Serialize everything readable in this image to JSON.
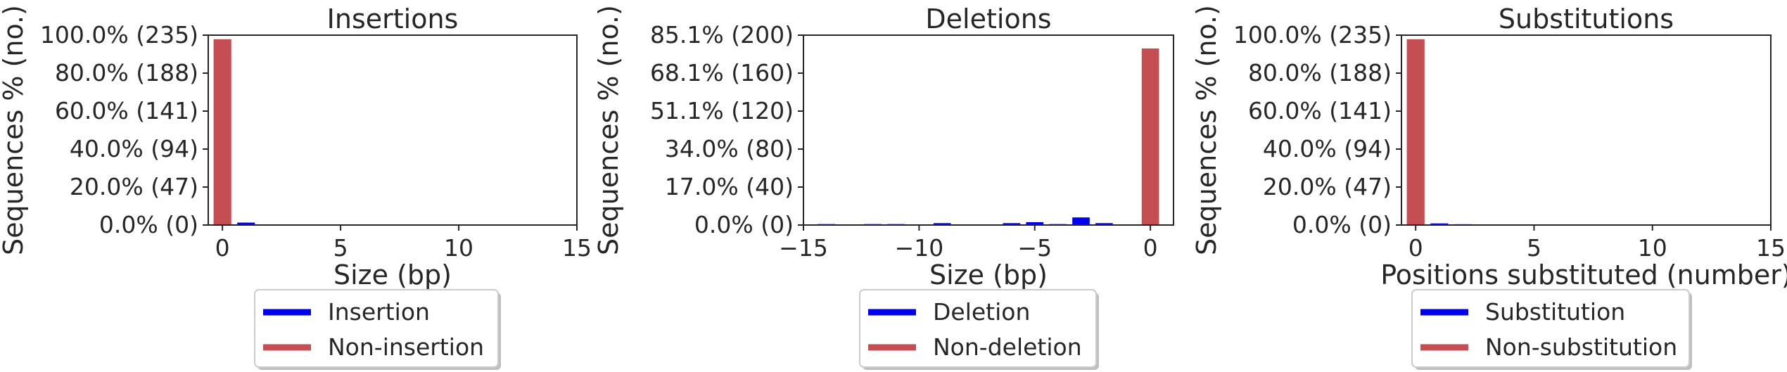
{
  "chart_data": [
    {
      "type": "bar",
      "title": "Insertions",
      "xlabel": "Size (bp)",
      "ylabel": "Sequences % (no.)",
      "xlim": [
        -0.6,
        15
      ],
      "xticks": [
        0,
        5,
        10,
        15
      ],
      "ylim": [
        0,
        235
      ],
      "yticks": [
        {
          "value": 0,
          "label": "0.0% (0)"
        },
        {
          "value": 47,
          "label": "20.0% (47)"
        },
        {
          "value": 94,
          "label": "40.0% (94)"
        },
        {
          "value": 141,
          "label": "60.0% (141)"
        },
        {
          "value": 188,
          "label": "80.0% (188)"
        },
        {
          "value": 235,
          "label": "100.0% (235)"
        }
      ],
      "series": [
        {
          "name": "Insertion",
          "color": "#0000ee",
          "points": [
            {
              "x": 1,
              "y": 3
            }
          ]
        },
        {
          "name": "Non-insertion",
          "color": "#c44e52",
          "points": [
            {
              "x": 0,
              "y": 230
            }
          ]
        }
      ],
      "legend": "below"
    },
    {
      "type": "bar",
      "title": "Deletions",
      "xlabel": "Size (bp)",
      "ylabel": "Sequences % (no.)",
      "xlim": [
        -15,
        1
      ],
      "xticks": [
        {
          "value": -15,
          "label": "−15"
        },
        {
          "value": -10,
          "label": "−10"
        },
        {
          "value": -5,
          "label": "−5"
        },
        {
          "value": 0,
          "label": "0"
        }
      ],
      "ylim": [
        0,
        200
      ],
      "yticks": [
        {
          "value": 0,
          "label": "0.0% (0)"
        },
        {
          "value": 40,
          "label": "17.0% (40)"
        },
        {
          "value": 80,
          "label": "34.0% (80)"
        },
        {
          "value": 120,
          "label": "51.1% (120)"
        },
        {
          "value": 160,
          "label": "68.1% (160)"
        },
        {
          "value": 200,
          "label": "85.1% (200)"
        }
      ],
      "series": [
        {
          "name": "Deletion",
          "color": "#0000ee",
          "points": [
            {
              "x": -14,
              "y": 1
            },
            {
              "x": -12,
              "y": 1
            },
            {
              "x": -11,
              "y": 1
            },
            {
              "x": -9,
              "y": 2
            },
            {
              "x": -6,
              "y": 2
            },
            {
              "x": -5,
              "y": 3
            },
            {
              "x": -4,
              "y": 1
            },
            {
              "x": -3,
              "y": 8
            },
            {
              "x": -2,
              "y": 2
            }
          ]
        },
        {
          "name": "Non-deletion",
          "color": "#c44e52",
          "points": [
            {
              "x": 0,
              "y": 186
            }
          ]
        }
      ],
      "legend": "below"
    },
    {
      "type": "bar",
      "title": "Substitutions",
      "xlabel": "Positions substituted (number)",
      "ylabel": "Sequences % (no.)",
      "xlim": [
        -0.6,
        15
      ],
      "xticks": [
        0,
        5,
        10,
        15
      ],
      "ylim": [
        0,
        235
      ],
      "yticks": [
        {
          "value": 0,
          "label": "0.0% (0)"
        },
        {
          "value": 47,
          "label": "20.0% (47)"
        },
        {
          "value": 94,
          "label": "40.0% (94)"
        },
        {
          "value": 141,
          "label": "60.0% (141)"
        },
        {
          "value": 188,
          "label": "80.0% (188)"
        },
        {
          "value": 235,
          "label": "100.0% (235)"
        }
      ],
      "series": [
        {
          "name": "Substitution",
          "color": "#0000ee",
          "points": [
            {
              "x": 1,
              "y": 2
            },
            {
              "x": 2,
              "y": 1
            }
          ]
        },
        {
          "name": "Non-substitution",
          "color": "#c44e52",
          "points": [
            {
              "x": 0,
              "y": 230
            }
          ]
        }
      ],
      "legend": "below"
    }
  ]
}
